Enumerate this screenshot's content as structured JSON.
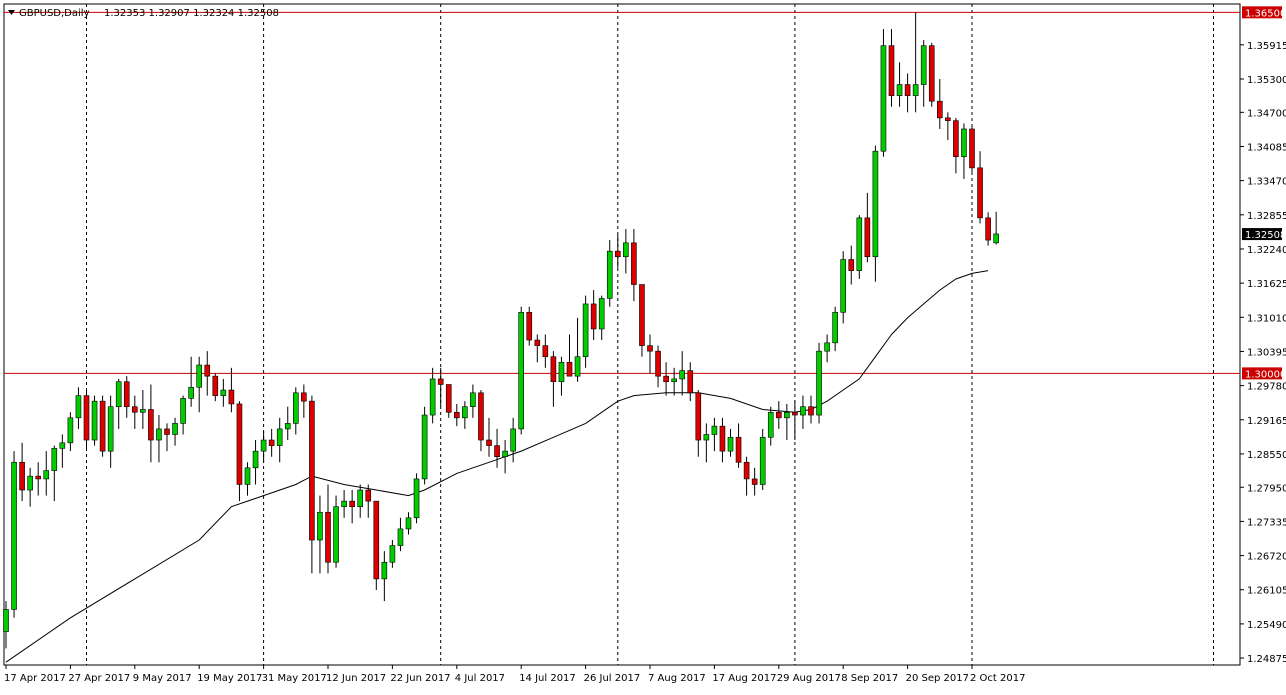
{
  "chart_data": {
    "type": "candlestick",
    "header": {
      "symbol": "GBPUSD,Daily",
      "ohlc": "1.32353 1.32907 1.32324 1.32508"
    },
    "y_ticks": [
      "1.35915",
      "1.35300",
      "1.34700",
      "1.34085",
      "1.33470",
      "1.32855",
      "1.32240",
      "1.31625",
      "1.31010",
      "1.30395",
      "1.29780",
      "1.29165",
      "1.28550",
      "1.27950",
      "1.27335",
      "1.26720",
      "1.26105",
      "1.25490",
      "1.24875"
    ],
    "ylim": [
      1.2475,
      1.3665
    ],
    "x_ticks": [
      {
        "label": "17 Apr 2017",
        "index": 0
      },
      {
        "label": "27 Apr 2017",
        "index": 8
      },
      {
        "label": "9 May 2017",
        "index": 16
      },
      {
        "label": "19 May 2017",
        "index": 24
      },
      {
        "label": "31 May 2017",
        "index": 32
      },
      {
        "label": "12 Jun 2017",
        "index": 40
      },
      {
        "label": "22 Jun 2017",
        "index": 48
      },
      {
        "label": "4 Jul 2017",
        "index": 56
      },
      {
        "label": "14 Jul 2017",
        "index": 64
      },
      {
        "label": "26 Jul 2017",
        "index": 72
      },
      {
        "label": "7 Aug 2017",
        "index": 80
      },
      {
        "label": "17 Aug 2017",
        "index": 88
      },
      {
        "label": "29 Aug 2017",
        "index": 96
      },
      {
        "label": "8 Sep 2017",
        "index": 104
      },
      {
        "label": "20 Sep 2017",
        "index": 112
      },
      {
        "label": "2 Oct 2017",
        "index": 120
      }
    ],
    "separators": [
      10,
      32,
      54,
      76,
      98,
      120,
      150
    ],
    "levels": [
      {
        "value": 1.365,
        "label": "1.36500",
        "color": "#cc0000"
      },
      {
        "value": 1.3,
        "label": "1.30000",
        "color": "#cc0000"
      }
    ],
    "current_price": {
      "value": 1.32508,
      "label": "1.32508"
    },
    "colors": {
      "bull": "#00cc00",
      "bear": "#dd0000",
      "ma": "#000000"
    },
    "candles": [
      [
        1.2535,
        1.259,
        1.2505,
        1.2575
      ],
      [
        1.2575,
        1.286,
        1.256,
        1.284
      ],
      [
        1.284,
        1.2875,
        1.277,
        1.279
      ],
      [
        1.279,
        1.283,
        1.276,
        1.2815
      ],
      [
        1.2815,
        1.284,
        1.278,
        1.281
      ],
      [
        1.281,
        1.286,
        1.278,
        1.2825
      ],
      [
        1.2825,
        1.287,
        1.277,
        1.2865
      ],
      [
        1.2865,
        1.289,
        1.283,
        1.2875
      ],
      [
        1.2875,
        1.293,
        1.286,
        1.292
      ],
      [
        1.292,
        1.2975,
        1.29,
        1.296
      ],
      [
        1.296,
        1.297,
        1.286,
        1.288
      ],
      [
        1.288,
        1.296,
        1.287,
        1.295
      ],
      [
        1.295,
        1.296,
        1.285,
        1.286
      ],
      [
        1.286,
        1.296,
        1.283,
        1.294
      ],
      [
        1.294,
        1.299,
        1.29,
        1.2985
      ],
      [
        1.2985,
        1.2995,
        1.292,
        1.294
      ],
      [
        1.294,
        1.296,
        1.29,
        1.293
      ],
      [
        1.293,
        1.297,
        1.29,
        1.2935
      ],
      [
        1.2935,
        1.298,
        1.284,
        1.288
      ],
      [
        1.288,
        1.2925,
        1.284,
        1.29
      ],
      [
        1.29,
        1.291,
        1.286,
        1.289
      ],
      [
        1.289,
        1.292,
        1.287,
        1.291
      ],
      [
        1.291,
        1.296,
        1.289,
        1.2955
      ],
      [
        1.2955,
        1.303,
        1.294,
        1.2975
      ],
      [
        1.2975,
        1.303,
        1.293,
        1.3015
      ],
      [
        1.3015,
        1.304,
        1.296,
        1.2995
      ],
      [
        1.2995,
        1.3,
        1.295,
        1.296
      ],
      [
        1.296,
        1.299,
        1.294,
        1.297
      ],
      [
        1.297,
        1.301,
        1.293,
        1.2945
      ],
      [
        1.2945,
        1.295,
        1.277,
        1.28
      ],
      [
        1.28,
        1.284,
        1.278,
        1.283
      ],
      [
        1.283,
        1.288,
        1.28,
        1.286
      ],
      [
        1.286,
        1.2895,
        1.284,
        1.288
      ],
      [
        1.288,
        1.29,
        1.285,
        1.287
      ],
      [
        1.287,
        1.292,
        1.284,
        1.29
      ],
      [
        1.29,
        1.294,
        1.288,
        1.291
      ],
      [
        1.291,
        1.2975,
        1.289,
        1.2965
      ],
      [
        1.2965,
        1.298,
        1.292,
        1.295
      ],
      [
        1.295,
        1.296,
        1.264,
        1.27
      ],
      [
        1.27,
        1.278,
        1.264,
        1.275
      ],
      [
        1.275,
        1.28,
        1.264,
        1.266
      ],
      [
        1.266,
        1.278,
        1.265,
        1.276
      ],
      [
        1.276,
        1.279,
        1.274,
        1.277
      ],
      [
        1.277,
        1.279,
        1.273,
        1.276
      ],
      [
        1.276,
        1.28,
        1.274,
        1.279
      ],
      [
        1.279,
        1.28,
        1.274,
        1.277
      ],
      [
        1.277,
        1.277,
        1.261,
        1.263
      ],
      [
        1.263,
        1.268,
        1.259,
        1.266
      ],
      [
        1.266,
        1.27,
        1.265,
        1.269
      ],
      [
        1.269,
        1.274,
        1.268,
        1.272
      ],
      [
        1.272,
        1.275,
        1.271,
        1.274
      ],
      [
        1.274,
        1.282,
        1.273,
        1.281
      ],
      [
        1.281,
        1.294,
        1.28,
        1.2925
      ],
      [
        1.2925,
        1.301,
        1.291,
        1.299
      ],
      [
        1.299,
        1.301,
        1.294,
        1.298
      ],
      [
        1.298,
        1.298,
        1.292,
        1.293
      ],
      [
        1.293,
        1.2945,
        1.2905,
        1.292
      ],
      [
        1.292,
        1.295,
        1.29,
        1.294
      ],
      [
        1.294,
        1.298,
        1.292,
        1.2965
      ],
      [
        1.2965,
        1.297,
        1.286,
        1.288
      ],
      [
        1.288,
        1.292,
        1.285,
        1.287
      ],
      [
        1.287,
        1.29,
        1.283,
        1.285
      ],
      [
        1.285,
        1.288,
        1.282,
        1.286
      ],
      [
        1.286,
        1.292,
        1.284,
        1.29
      ],
      [
        1.29,
        1.312,
        1.289,
        1.311
      ],
      [
        1.311,
        1.312,
        1.305,
        1.306
      ],
      [
        1.306,
        1.307,
        1.302,
        1.305
      ],
      [
        1.305,
        1.307,
        1.301,
        1.303
      ],
      [
        1.303,
        1.304,
        1.294,
        1.2985
      ],
      [
        1.2985,
        1.303,
        1.296,
        1.302
      ],
      [
        1.302,
        1.307,
        1.3,
        1.2995
      ],
      [
        1.2995,
        1.31,
        1.2985,
        1.303
      ],
      [
        1.303,
        1.314,
        1.301,
        1.3125
      ],
      [
        1.3125,
        1.315,
        1.306,
        1.308
      ],
      [
        1.308,
        1.314,
        1.306,
        1.3135
      ],
      [
        1.3135,
        1.324,
        1.312,
        1.322
      ],
      [
        1.322,
        1.325,
        1.319,
        1.321
      ],
      [
        1.321,
        1.326,
        1.318,
        1.3235
      ],
      [
        1.3235,
        1.326,
        1.313,
        1.316
      ],
      [
        1.316,
        1.316,
        1.303,
        1.305
      ],
      [
        1.305,
        1.307,
        1.3,
        1.304
      ],
      [
        1.304,
        1.305,
        1.2975,
        1.2995
      ],
      [
        1.2995,
        1.302,
        1.296,
        1.2985
      ],
      [
        1.2985,
        1.301,
        1.296,
        1.299
      ],
      [
        1.299,
        1.304,
        1.296,
        1.3005
      ],
      [
        1.3005,
        1.302,
        1.295,
        1.2965
      ],
      [
        1.2965,
        1.297,
        1.285,
        1.288
      ],
      [
        1.288,
        1.291,
        1.284,
        1.289
      ],
      [
        1.289,
        1.292,
        1.286,
        1.2905
      ],
      [
        1.2905,
        1.292,
        1.284,
        1.286
      ],
      [
        1.286,
        1.29,
        1.285,
        1.2885
      ],
      [
        1.2885,
        1.291,
        1.283,
        1.284
      ],
      [
        1.284,
        1.285,
        1.278,
        1.281
      ],
      [
        1.281,
        1.283,
        1.278,
        1.28
      ],
      [
        1.28,
        1.29,
        1.279,
        1.2885
      ],
      [
        1.2885,
        1.294,
        1.287,
        1.293
      ],
      [
        1.293,
        1.295,
        1.29,
        1.292
      ],
      [
        1.292,
        1.2945,
        1.288,
        1.293
      ],
      [
        1.293,
        1.295,
        1.288,
        1.2925
      ],
      [
        1.2925,
        1.296,
        1.29,
        1.294
      ],
      [
        1.294,
        1.296,
        1.291,
        1.2925
      ],
      [
        1.2925,
        1.3055,
        1.291,
        1.304
      ],
      [
        1.304,
        1.307,
        1.302,
        1.3055
      ],
      [
        1.3055,
        1.312,
        1.304,
        1.311
      ],
      [
        1.311,
        1.322,
        1.309,
        1.3205
      ],
      [
        1.3205,
        1.323,
        1.316,
        1.3185
      ],
      [
        1.3185,
        1.3285,
        1.317,
        1.328
      ],
      [
        1.328,
        1.3325,
        1.32,
        1.321
      ],
      [
        1.321,
        1.341,
        1.3165,
        1.34
      ],
      [
        1.34,
        1.362,
        1.339,
        1.359
      ],
      [
        1.359,
        1.362,
        1.348,
        1.35
      ],
      [
        1.35,
        1.356,
        1.348,
        1.352
      ],
      [
        1.352,
        1.354,
        1.347,
        1.35
      ],
      [
        1.35,
        1.365,
        1.347,
        1.352
      ],
      [
        1.352,
        1.36,
        1.348,
        1.359
      ],
      [
        1.359,
        1.3595,
        1.348,
        1.349
      ],
      [
        1.349,
        1.353,
        1.344,
        1.346
      ],
      [
        1.346,
        1.347,
        1.342,
        1.3455
      ],
      [
        1.3455,
        1.346,
        1.336,
        1.339
      ],
      [
        1.339,
        1.345,
        1.335,
        1.344
      ],
      [
        1.344,
        1.3445,
        1.336,
        1.337
      ],
      [
        1.337,
        1.34,
        1.327,
        1.328
      ],
      [
        1.328,
        1.329,
        1.323,
        1.324
      ],
      [
        1.3235,
        1.3291,
        1.3232,
        1.3251
      ]
    ],
    "moving_average": [
      [
        0,
        1.248
      ],
      [
        8,
        1.256
      ],
      [
        16,
        1.263
      ],
      [
        24,
        1.27
      ],
      [
        28,
        1.276
      ],
      [
        32,
        1.278
      ],
      [
        36,
        1.28
      ],
      [
        38,
        1.2815
      ],
      [
        42,
        1.28
      ],
      [
        46,
        1.279
      ],
      [
        50,
        1.278
      ],
      [
        52,
        1.279
      ],
      [
        56,
        1.282
      ],
      [
        60,
        1.284
      ],
      [
        64,
        1.286
      ],
      [
        68,
        1.2885
      ],
      [
        72,
        1.291
      ],
      [
        74,
        1.293
      ],
      [
        76,
        1.295
      ],
      [
        78,
        1.296
      ],
      [
        82,
        1.2965
      ],
      [
        86,
        1.2965
      ],
      [
        90,
        1.2955
      ],
      [
        94,
        1.2935
      ],
      [
        98,
        1.293
      ],
      [
        100,
        1.2935
      ],
      [
        102,
        1.295
      ],
      [
        104,
        1.297
      ],
      [
        106,
        1.299
      ],
      [
        108,
        1.303
      ],
      [
        110,
        1.307
      ],
      [
        112,
        1.31
      ],
      [
        114,
        1.3125
      ],
      [
        116,
        1.315
      ],
      [
        118,
        1.317
      ],
      [
        120,
        1.318
      ],
      [
        122,
        1.3185
      ]
    ]
  }
}
